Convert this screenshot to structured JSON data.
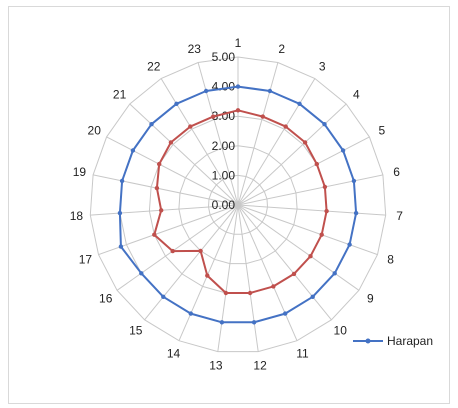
{
  "chart_data": {
    "type": "radar",
    "categories": [
      "1",
      "2",
      "3",
      "4",
      "5",
      "6",
      "7",
      "8",
      "9",
      "10",
      "11",
      "12",
      "13",
      "14",
      "15",
      "16",
      "17",
      "18",
      "19",
      "20",
      "21",
      "22",
      "23"
    ],
    "rlim": [
      0,
      5
    ],
    "ticks": [
      "0.00",
      "1.00",
      "2.00",
      "3.00",
      "4.00",
      "5.00"
    ],
    "grid": true,
    "legend_position": "right",
    "series": [
      {
        "name": "Harapan",
        "color": "#4472c4",
        "values": [
          4.0,
          4.0,
          4.0,
          4.0,
          4.0,
          4.0,
          4.0,
          4.0,
          4.0,
          4.0,
          4.0,
          4.0,
          4.0,
          4.0,
          4.0,
          4.0,
          4.2,
          4.0,
          4.0,
          4.0,
          4.0,
          4.0,
          4.0
        ]
      },
      {
        "name": "",
        "color": "#c0504d",
        "values": [
          3.2,
          3.1,
          3.1,
          3.1,
          3.0,
          3.0,
          3.0,
          3.0,
          3.0,
          3.0,
          3.0,
          3.0,
          3.0,
          2.6,
          2.0,
          2.7,
          3.0,
          2.6,
          2.8,
          3.0,
          3.1,
          3.1,
          3.1
        ]
      }
    ]
  }
}
